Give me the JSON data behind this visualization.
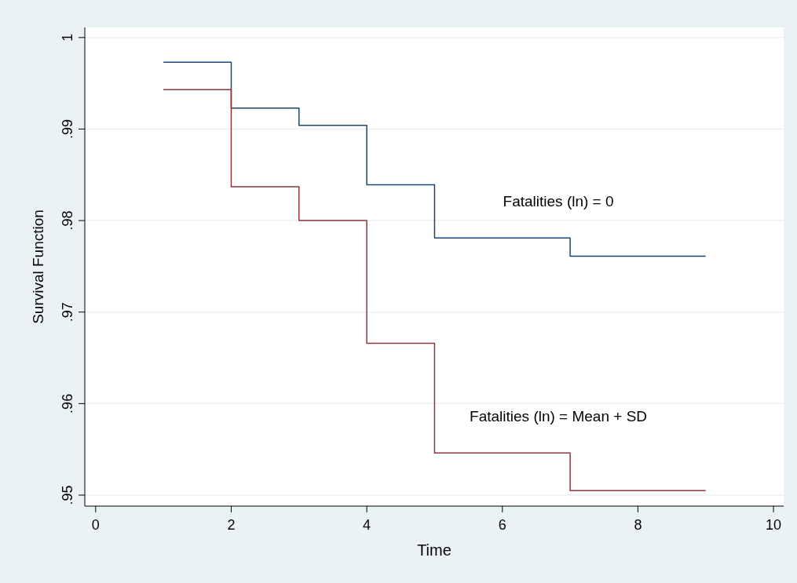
{
  "chart_data": {
    "type": "step",
    "xlabel": "Time",
    "ylabel": "Survival Function",
    "x": [
      1,
      2,
      3,
      4,
      5,
      7,
      9
    ],
    "series": [
      {
        "name": "Fatalities (ln) = 0",
        "color": "#1a476f",
        "values": [
          0.9973,
          0.9923,
          0.9904,
          0.9839,
          0.9781,
          0.9761,
          0.9761
        ]
      },
      {
        "name": "Fatalities (ln) = Mean + SD",
        "color": "#90353b",
        "values": [
          0.9943,
          0.9837,
          0.98,
          0.9666,
          0.9546,
          0.9505,
          0.9505
        ]
      }
    ],
    "xlim": [
      -0.16,
      10.15
    ],
    "xticks": [
      0,
      2,
      4,
      6,
      8,
      10
    ],
    "ylim": [
      0.9488,
      1.0011
    ],
    "yticks": [
      {
        "value": 0.95,
        "label": ".95"
      },
      {
        "value": 0.96,
        "label": ".96"
      },
      {
        "value": 0.97,
        "label": ".97"
      },
      {
        "value": 0.98,
        "label": ".98"
      },
      {
        "value": 0.99,
        "label": ".99"
      },
      {
        "value": 1,
        "label": "1"
      }
    ],
    "grid": "y"
  }
}
